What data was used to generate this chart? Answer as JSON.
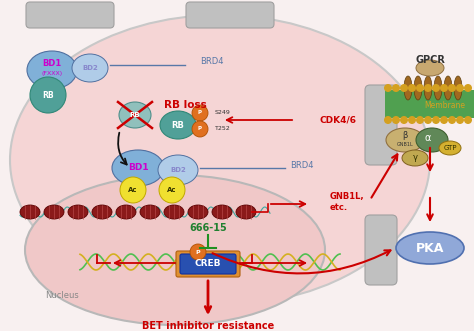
{
  "bg_color": "#f8f0f0",
  "title_text": "BET inhibitor resistance",
  "title_color": "#cc0000",
  "nucleus_label": "Nucleus",
  "membrane_label": "Membrane",
  "labels": {
    "BD1_top": "BD1",
    "BD1_fxxx": "(FXXX)",
    "BD2_top": "BD2",
    "RB_top": "RB",
    "BRD4_top": "BRD4",
    "RB_loss": "RB loss",
    "RB_cross": "RB",
    "RB_phospho": "RB",
    "S249": "S249",
    "T252": "T252",
    "CDK46": "CDK4/6",
    "BRD4_mid": "BRD4",
    "BD1_mid": "BD1",
    "BD2_mid": "BD2",
    "Ac1": "Ac",
    "Ac2": "Ac",
    "GNB1L_etc": "GNB1L,\netc.",
    "GPCR": "GPCR",
    "Membrane": "Membrane",
    "beta": "β",
    "GNB1L_small": "GNB1L",
    "alpha": "α",
    "GTP": "GTP",
    "gamma": "γ",
    "PKA": "PKA",
    "drug_666": "666-15",
    "CREB": "CREB",
    "P_creb": "P",
    "P_rb1": "P",
    "P_rb2": "P"
  },
  "colors": {
    "cell_fill": "#f5d5d5",
    "cell_edge": "#c8c8c8",
    "nucleus_fill": "#f0c8c8",
    "nucleus_edge": "#b8b8b8",
    "bd1_fill": "#80b0d8",
    "bd2_fill": "#b0cce8",
    "bd1_text": "#cc00cc",
    "bd2_text": "#8888cc",
    "rb_fill": "#50a098",
    "rb_edge": "#308878",
    "rb_text": "#ffffff",
    "brd4_color": "#5878a8",
    "red": "#cc0000",
    "black": "#111111",
    "ac_fill": "#f0e030",
    "ac_edge": "#c0a800",
    "chrom_fill": "#8b1a1a",
    "chrom_edge": "#5a0000",
    "dna_teal": "#40a8a0",
    "dna_green": "#50c050",
    "dna_yellow": "#d4b020",
    "creb_orange": "#e09030",
    "creb_blue": "#2850b0",
    "creb_edge": "#1030a0",
    "p_fill": "#e07020",
    "p_edge": "#b05000",
    "gpcr_brown": "#a06820",
    "gpcr_head": "#c8a870",
    "mem_green": "#50a050",
    "mem_gold": "#d4a020",
    "beta_fill": "#c8b070",
    "alpha_fill": "#608858",
    "gamma_fill": "#c0a850",
    "gtp_fill": "#d4b030",
    "pka_fill": "#90a8d8",
    "pka_edge": "#5070b0",
    "drug_green": "#208030",
    "inhibit_green": "#209020",
    "gray_shape": "#c0c0c0"
  },
  "figsize": [
    4.74,
    3.31
  ],
  "dpi": 100
}
